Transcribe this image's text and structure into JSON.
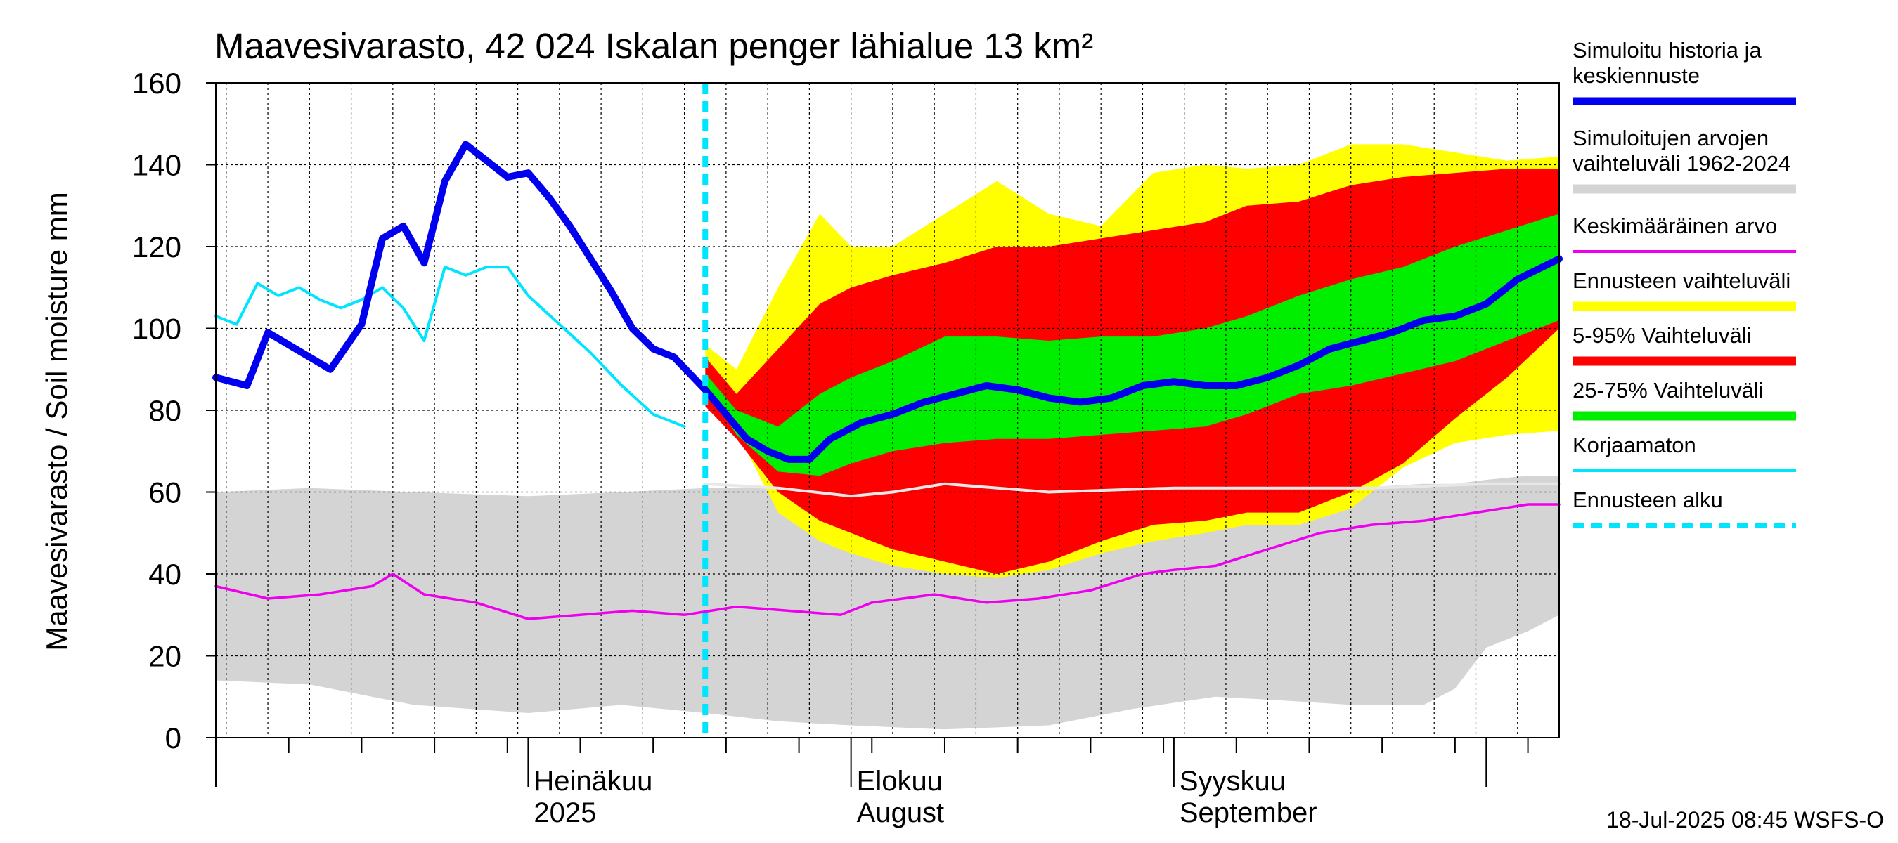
{
  "chart_data": {
    "type": "area",
    "title": "Maavesivarasto, 42 024 Iskalan penger lähialue 13 km²",
    "ylabel": "Maavesivarasto / Soil moisture   mm",
    "ylim": [
      0,
      160
    ],
    "yticks": [
      "0",
      "20",
      "40",
      "60",
      "80",
      "100",
      "120",
      "140",
      "160"
    ],
    "x_start": "2025-06-01",
    "x_end": "2025-10-08",
    "forecast_start": "2025-07-18",
    "month_labels": [
      {
        "line1": "Heinäkuu",
        "line2": "2025",
        "date": "2025-07-01"
      },
      {
        "line1": "Elokuu",
        "line2": "August",
        "date": "2025-08-01"
      },
      {
        "line1": "Syyskuu",
        "line2": "September",
        "date": "2025-09-01"
      }
    ],
    "footer": "18-Jul-2025 08:45 WSFS-O",
    "colors": {
      "history": "#0000ee",
      "range": "#d4d4d4",
      "range_mean": "#e8e8e8",
      "mean": "#ee00ee",
      "forecast_range": "#ffff00",
      "p5_95": "#ff0000",
      "p25_75": "#00ee00",
      "uncorrected": "#00e5ff",
      "forecast_start": "#00e5ff"
    },
    "legend": [
      {
        "label": "Simuloitu historia ja keskiennuste",
        "lines": [
          "Simuloitu historia ja",
          "keskiennuste"
        ],
        "color": "#0000ee",
        "style": "thick"
      },
      {
        "label": "Simuloitujen arvojen vaihteluväli 1962-2024",
        "lines": [
          "Simuloitujen arvojen",
          "vaihteluväli 1962-2024"
        ],
        "color": "#d4d4d4",
        "style": "band"
      },
      {
        "label": "Keskimääräinen arvo",
        "lines": [
          "Keskimääräinen arvo"
        ],
        "color": "#ee00ee",
        "style": "thin"
      },
      {
        "label": "Ennusteen vaihteluväli",
        "lines": [
          "Ennusteen vaihteluväli"
        ],
        "color": "#ffff00",
        "style": "band"
      },
      {
        "label": "5-95% Vaihteluväli",
        "lines": [
          "5-95% Vaihteluväli"
        ],
        "color": "#ff0000",
        "style": "band"
      },
      {
        "label": "25-75% Vaihteluväli",
        "lines": [
          "25-75% Vaihteluväli"
        ],
        "color": "#00ee00",
        "style": "band"
      },
      {
        "label": "Korjaamaton",
        "lines": [
          "Korjaamaton"
        ],
        "color": "#00e5ff",
        "style": "thin"
      },
      {
        "label": "Ennusteen alku",
        "lines": [
          "Ennusteen alku"
        ],
        "color": "#00e5ff",
        "style": "dashed"
      }
    ],
    "series": [
      {
        "name": "Simuloitu historia ja keskiennuste",
        "x": [
          "2025-06-01",
          "2025-06-04",
          "2025-06-06",
          "2025-06-08",
          "2025-06-10",
          "2025-06-12",
          "2025-06-15",
          "2025-06-17",
          "2025-06-19",
          "2025-06-21",
          "2025-06-23",
          "2025-06-25",
          "2025-06-27",
          "2025-06-29",
          "2025-07-01",
          "2025-07-03",
          "2025-07-05",
          "2025-07-07",
          "2025-07-09",
          "2025-07-11",
          "2025-07-13",
          "2025-07-15",
          "2025-07-18",
          "2025-07-20",
          "2025-07-22",
          "2025-07-24",
          "2025-07-26",
          "2025-07-28",
          "2025-07-30",
          "2025-08-02",
          "2025-08-05",
          "2025-08-08",
          "2025-08-11",
          "2025-08-14",
          "2025-08-17",
          "2025-08-20",
          "2025-08-23",
          "2025-08-26",
          "2025-08-29",
          "2025-09-01",
          "2025-09-04",
          "2025-09-07",
          "2025-09-10",
          "2025-09-13",
          "2025-09-16",
          "2025-09-19",
          "2025-09-22",
          "2025-09-25",
          "2025-09-28",
          "2025-10-01",
          "2025-10-04",
          "2025-10-08"
        ],
        "y": [
          88,
          86,
          99,
          96,
          93,
          90,
          101,
          122,
          125,
          116,
          136,
          145,
          141,
          137,
          138,
          132,
          125,
          117,
          109,
          100,
          95,
          93,
          85,
          79,
          73,
          70,
          68,
          68,
          73,
          77,
          79,
          82,
          84,
          86,
          85,
          83,
          82,
          83,
          86,
          87,
          86,
          86,
          88,
          91,
          95,
          97,
          99,
          102,
          103,
          106,
          112,
          117
        ]
      },
      {
        "name": "Korjaamaton",
        "x": [
          "2025-06-01",
          "2025-06-03",
          "2025-06-05",
          "2025-06-07",
          "2025-06-09",
          "2025-06-11",
          "2025-06-13",
          "2025-06-15",
          "2025-06-17",
          "2025-06-19",
          "2025-06-21",
          "2025-06-23",
          "2025-06-25",
          "2025-06-27",
          "2025-06-29",
          "2025-07-01",
          "2025-07-04",
          "2025-07-07",
          "2025-07-10",
          "2025-07-13",
          "2025-07-16"
        ],
        "y": [
          103,
          101,
          111,
          108,
          110,
          107,
          105,
          107,
          110,
          105,
          97,
          115,
          113,
          115,
          115,
          108,
          101,
          94,
          86,
          79,
          76
        ]
      },
      {
        "name": "Keskimääräinen arvo",
        "x": [
          "2025-06-01",
          "2025-06-06",
          "2025-06-11",
          "2025-06-16",
          "2025-06-18",
          "2025-06-21",
          "2025-06-26",
          "2025-07-01",
          "2025-07-06",
          "2025-07-11",
          "2025-07-16",
          "2025-07-21",
          "2025-07-26",
          "2025-07-31",
          "2025-08-03",
          "2025-08-06",
          "2025-08-09",
          "2025-08-14",
          "2025-08-19",
          "2025-08-24",
          "2025-08-29",
          "2025-09-01",
          "2025-09-05",
          "2025-09-10",
          "2025-09-15",
          "2025-09-20",
          "2025-09-25",
          "2025-09-30",
          "2025-10-05",
          "2025-10-08"
        ],
        "y": [
          37,
          34,
          35,
          37,
          40,
          35,
          33,
          29,
          30,
          31,
          30,
          32,
          31,
          30,
          33,
          34,
          35,
          33,
          34,
          36,
          40,
          41,
          42,
          46,
          50,
          52,
          53,
          55,
          57,
          57
        ]
      },
      {
        "name": "Keskiarvo (vaihteluväli)",
        "x": [
          "2025-07-18",
          "2025-07-25",
          "2025-08-01",
          "2025-08-05",
          "2025-08-10",
          "2025-08-20",
          "2025-09-01",
          "2025-09-10",
          "2025-09-20",
          "2025-10-01",
          "2025-10-08"
        ],
        "y": [
          62,
          61,
          59,
          60,
          62,
          60,
          61,
          61,
          61,
          62,
          62
        ]
      }
    ],
    "bands": [
      {
        "name": "Simuloitujen arvojen vaihteluväli 1962-2024",
        "x": [
          "2025-06-01",
          "2025-06-10",
          "2025-06-20",
          "2025-07-01",
          "2025-07-10",
          "2025-07-18",
          "2025-07-25",
          "2025-08-01",
          "2025-08-10",
          "2025-08-20",
          "2025-08-28",
          "2025-09-05",
          "2025-09-12",
          "2025-09-18",
          "2025-09-25",
          "2025-09-28",
          "2025-10-01",
          "2025-10-05",
          "2025-10-08"
        ],
        "low": [
          14,
          13,
          8,
          6,
          8,
          6,
          4,
          3,
          2,
          3,
          7,
          10,
          9,
          8,
          8,
          12,
          22,
          26,
          30
        ],
        "high": [
          60,
          61,
          60,
          59,
          60,
          61,
          61,
          62,
          61,
          61,
          60,
          60,
          61,
          61,
          62,
          62,
          63,
          64,
          64
        ]
      },
      {
        "name": "Ennusteen vaihteluväli",
        "x": [
          "2025-07-18",
          "2025-07-21",
          "2025-07-25",
          "2025-07-29",
          "2025-08-01",
          "2025-08-05",
          "2025-08-10",
          "2025-08-15",
          "2025-08-20",
          "2025-08-25",
          "2025-08-30",
          "2025-09-04",
          "2025-09-08",
          "2025-09-13",
          "2025-09-18",
          "2025-09-23",
          "2025-09-28",
          "2025-10-03",
          "2025-10-08"
        ],
        "low": [
          83,
          75,
          55,
          48,
          45,
          42,
          40,
          39,
          41,
          45,
          48,
          50,
          52,
          52,
          56,
          66,
          72,
          74,
          75
        ],
        "high": [
          96,
          90,
          110,
          128,
          120,
          120,
          128,
          136,
          128,
          125,
          138,
          140,
          139,
          140,
          145,
          145,
          143,
          141,
          142
        ]
      },
      {
        "name": "5-95% Vaihteluväli",
        "x": [
          "2025-07-18",
          "2025-07-21",
          "2025-07-25",
          "2025-07-29",
          "2025-08-01",
          "2025-08-05",
          "2025-08-10",
          "2025-08-15",
          "2025-08-20",
          "2025-08-25",
          "2025-08-30",
          "2025-09-04",
          "2025-09-08",
          "2025-09-13",
          "2025-09-18",
          "2025-09-23",
          "2025-09-28",
          "2025-10-03",
          "2025-10-08"
        ],
        "low": [
          81,
          73,
          60,
          53,
          50,
          46,
          43,
          40,
          43,
          48,
          52,
          53,
          55,
          55,
          60,
          67,
          78,
          88,
          100
        ],
        "high": [
          93,
          84,
          95,
          106,
          110,
          113,
          116,
          120,
          120,
          122,
          124,
          126,
          130,
          131,
          135,
          137,
          138,
          139,
          139
        ]
      },
      {
        "name": "25-75% Vaihteluväli",
        "x": [
          "2025-07-18",
          "2025-07-21",
          "2025-07-25",
          "2025-07-29",
          "2025-08-01",
          "2025-08-05",
          "2025-08-10",
          "2025-08-15",
          "2025-08-20",
          "2025-08-25",
          "2025-08-30",
          "2025-09-04",
          "2025-09-08",
          "2025-09-13",
          "2025-09-18",
          "2025-09-23",
          "2025-09-28",
          "2025-10-03",
          "2025-10-08"
        ],
        "low": [
          86,
          74,
          65,
          64,
          67,
          70,
          72,
          73,
          73,
          74,
          75,
          76,
          79,
          84,
          86,
          89,
          92,
          97,
          102
        ],
        "high": [
          89,
          80,
          76,
          84,
          88,
          92,
          98,
          98,
          97,
          98,
          98,
          100,
          103,
          108,
          112,
          115,
          120,
          124,
          128
        ]
      }
    ]
  }
}
